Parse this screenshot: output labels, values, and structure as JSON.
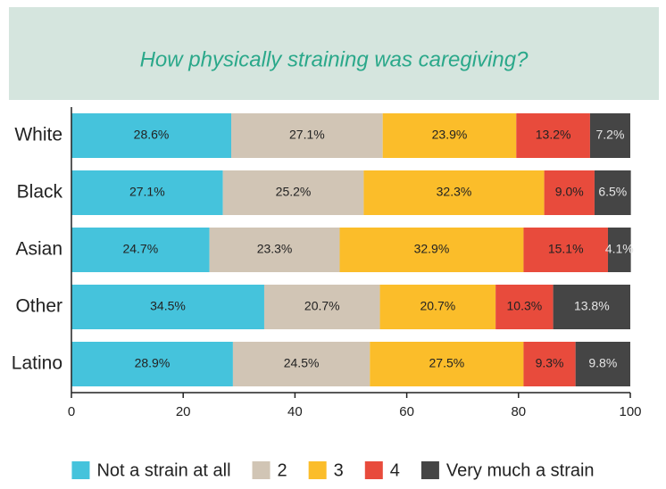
{
  "chart_data": {
    "type": "stacked_bar_horizontal",
    "title": "How physically straining was caregiving?",
    "categories": [
      "White",
      "Black",
      "Asian",
      "Other",
      "Latino"
    ],
    "series": [
      {
        "name": "Not a strain at all",
        "color": "#45c3dc",
        "values": [
          28.6,
          27.1,
          24.7,
          34.5,
          28.9
        ],
        "value_labels": [
          "28.6%",
          "27.1%",
          "24.7%",
          "34.5%",
          "28.9%"
        ]
      },
      {
        "name": "2",
        "color": "#d1c5b5",
        "values": [
          27.1,
          25.2,
          23.3,
          20.7,
          24.5
        ],
        "value_labels": [
          "27.1%",
          "25.2%",
          "23.3%",
          "20.7%",
          "24.5%"
        ]
      },
      {
        "name": "3",
        "color": "#fbbd2a",
        "values": [
          23.9,
          32.3,
          32.9,
          20.7,
          27.5
        ],
        "value_labels": [
          "23.9%",
          "32.3%",
          "32.9%",
          "20.7%",
          "27.5%"
        ]
      },
      {
        "name": "4",
        "color": "#e84b3c",
        "values": [
          13.2,
          9.0,
          15.1,
          10.3,
          9.3
        ],
        "value_labels": [
          "13.2%",
          "9.0%",
          "15.1%",
          "10.3%",
          "9.3%"
        ]
      },
      {
        "name": "Very much a strain",
        "color": "#454545",
        "values": [
          7.2,
          6.5,
          4.1,
          13.8,
          9.8
        ],
        "value_labels": [
          "7.2%",
          "6.5%",
          "4.1%",
          "13.8%",
          "9.8%"
        ]
      }
    ],
    "xlim": [
      0,
      100
    ],
    "xticks": [
      0,
      20,
      40,
      60,
      80,
      100
    ],
    "legend": "bottom"
  }
}
